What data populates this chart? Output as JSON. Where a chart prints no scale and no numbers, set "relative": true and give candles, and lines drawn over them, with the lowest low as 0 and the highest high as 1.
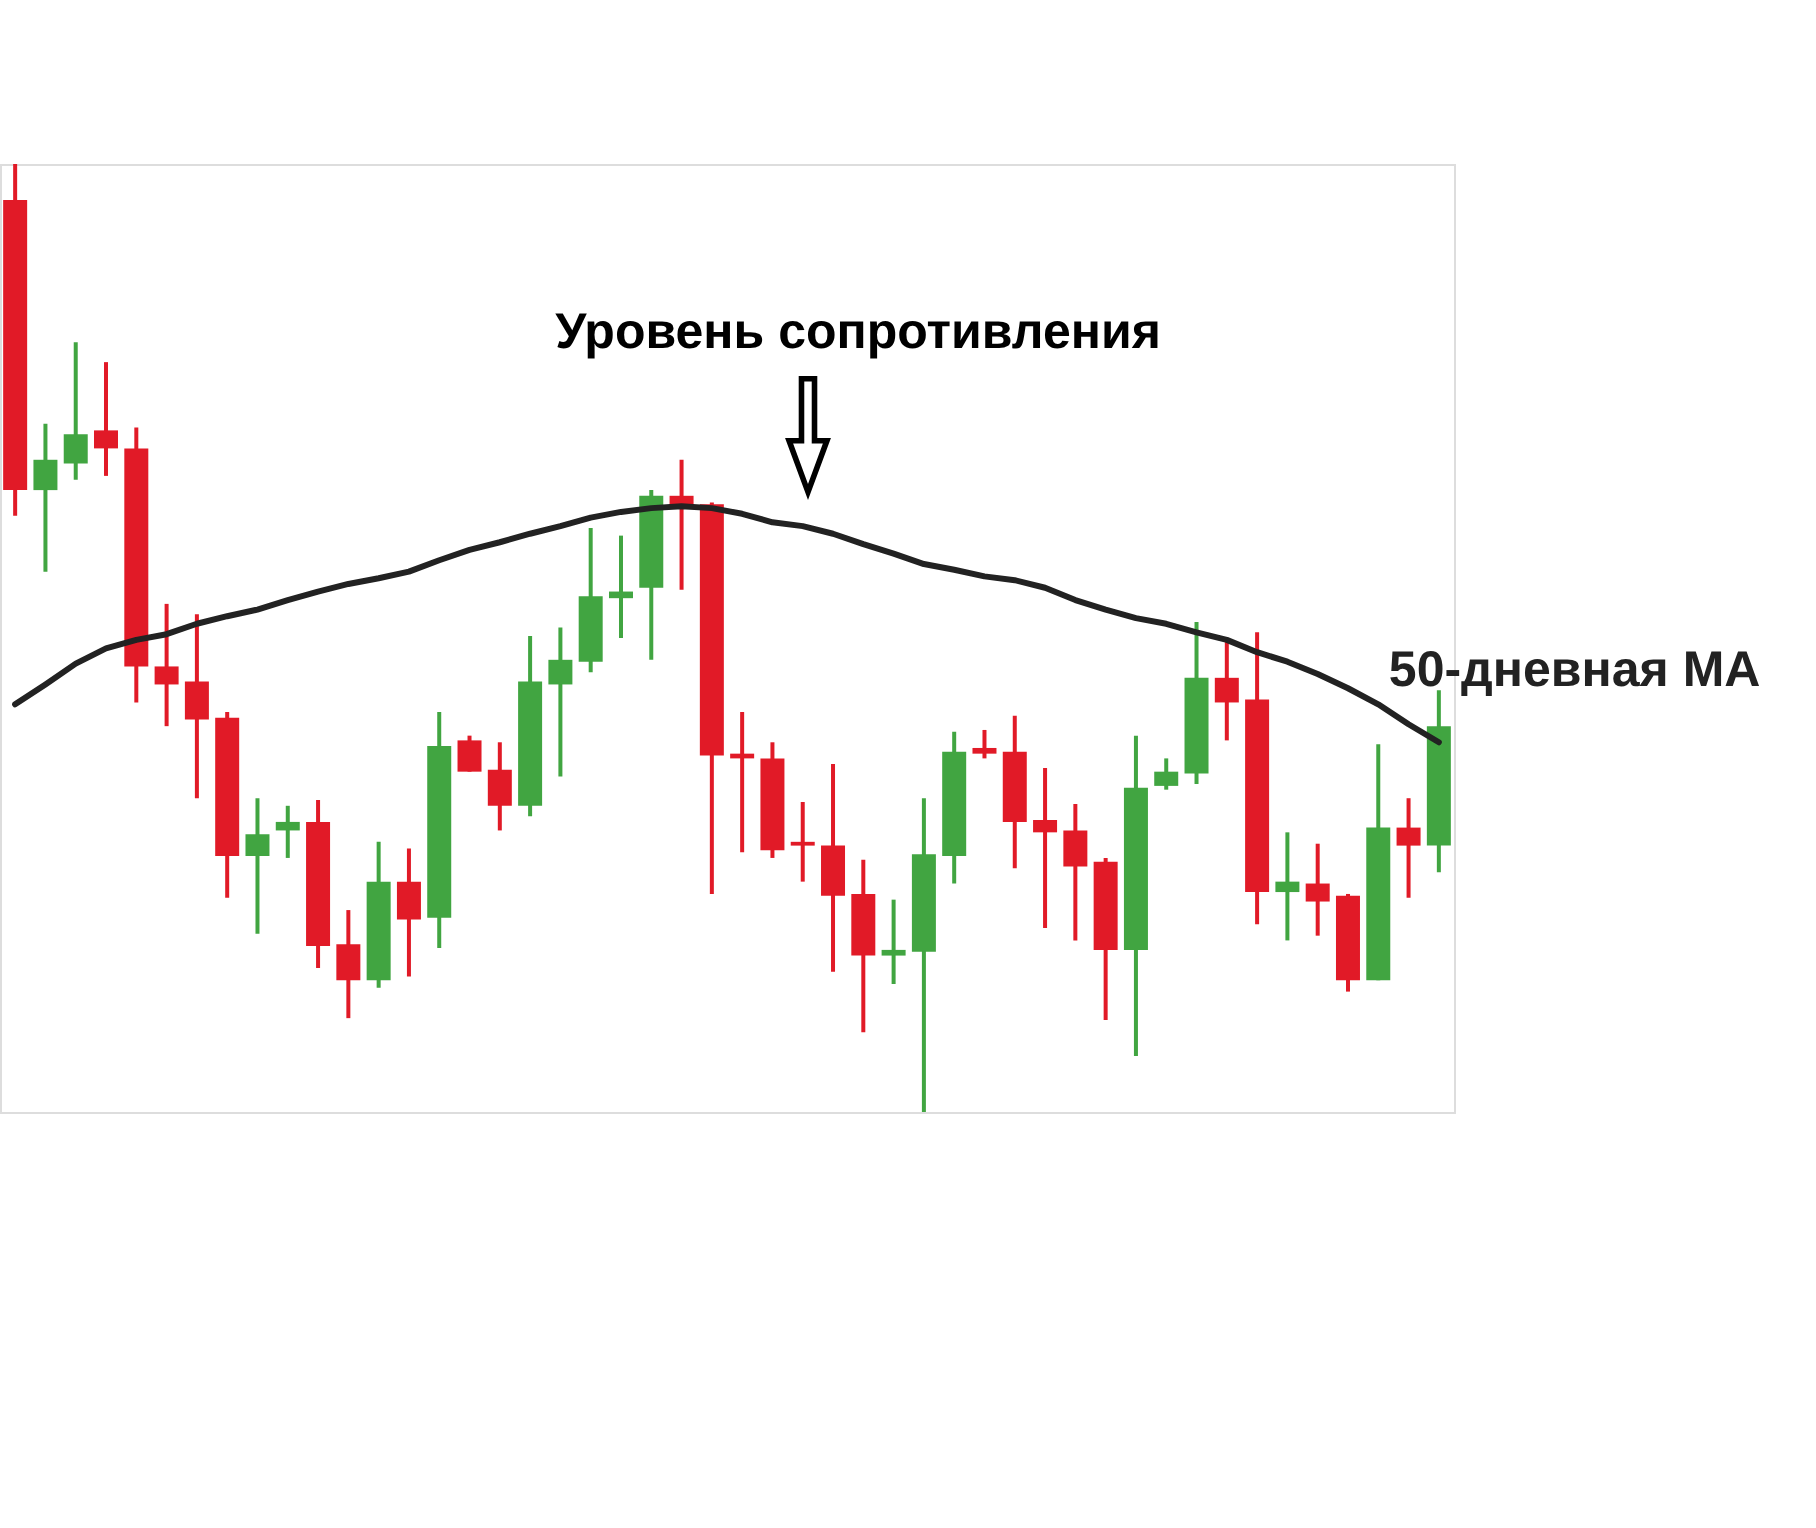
{
  "chart_data": {
    "type": "candlestick",
    "relative": true,
    "tick_labels": false,
    "categories": [
      null,
      null,
      null,
      null,
      null,
      null,
      null,
      null,
      null,
      null,
      null,
      null,
      null,
      null,
      null,
      null,
      null,
      null,
      null,
      null,
      null,
      null,
      null,
      null,
      null,
      null,
      null,
      null,
      null,
      null,
      null,
      null,
      null,
      null,
      null,
      null,
      null,
      null,
      null,
      null,
      null,
      null,
      null,
      null,
      null,
      null,
      null,
      null
    ],
    "ohlc": [
      [
        0.962,
        1.0,
        0.629,
        0.656
      ],
      [
        0.656,
        0.726,
        0.57,
        0.688
      ],
      [
        0.684,
        0.812,
        0.667,
        0.715
      ],
      [
        0.719,
        0.791,
        0.671,
        0.7
      ],
      [
        0.7,
        0.722,
        0.432,
        0.47
      ],
      [
        0.47,
        0.536,
        0.407,
        0.451
      ],
      [
        0.454,
        0.525,
        0.331,
        0.414
      ],
      [
        0.416,
        0.422,
        0.226,
        0.27
      ],
      [
        0.27,
        0.331,
        0.188,
        0.293
      ],
      [
        0.297,
        0.323,
        0.268,
        0.306
      ],
      [
        0.306,
        0.329,
        0.152,
        0.175
      ],
      [
        0.177,
        0.213,
        0.099,
        0.139
      ],
      [
        0.139,
        0.285,
        0.131,
        0.243
      ],
      [
        0.243,
        0.278,
        0.143,
        0.203
      ],
      [
        0.205,
        0.422,
        0.173,
        0.386
      ],
      [
        0.392,
        0.397,
        0.359,
        0.359
      ],
      [
        0.361,
        0.39,
        0.297,
        0.323
      ],
      [
        0.323,
        0.502,
        0.312,
        0.454
      ],
      [
        0.451,
        0.511,
        0.354,
        0.477
      ],
      [
        0.475,
        0.616,
        0.464,
        0.544
      ],
      [
        0.542,
        0.608,
        0.5,
        0.549
      ],
      [
        0.553,
        0.656,
        0.477,
        0.65
      ],
      [
        0.65,
        0.688,
        0.551,
        0.639
      ],
      [
        0.641,
        0.643,
        0.23,
        0.376
      ],
      [
        0.378,
        0.422,
        0.274,
        0.373
      ],
      [
        0.373,
        0.39,
        0.268,
        0.276
      ],
      [
        0.285,
        0.327,
        0.243,
        0.281
      ],
      [
        0.281,
        0.367,
        0.148,
        0.228
      ],
      [
        0.23,
        0.266,
        0.084,
        0.165
      ],
      [
        0.165,
        0.224,
        0.135,
        0.171
      ],
      [
        0.169,
        0.331,
        0.0,
        0.272
      ],
      [
        0.27,
        0.401,
        0.241,
        0.38
      ],
      [
        0.384,
        0.403,
        0.373,
        0.378
      ],
      [
        0.38,
        0.418,
        0.257,
        0.306
      ],
      [
        0.308,
        0.363,
        0.194,
        0.295
      ],
      [
        0.297,
        0.325,
        0.181,
        0.259
      ],
      [
        0.264,
        0.268,
        0.097,
        0.171
      ],
      [
        0.171,
        0.397,
        0.059,
        0.342
      ],
      [
        0.344,
        0.373,
        0.34,
        0.359
      ],
      [
        0.357,
        0.517,
        0.346,
        0.458
      ],
      [
        0.458,
        0.498,
        0.392,
        0.432
      ],
      [
        0.435,
        0.506,
        0.198,
        0.232
      ],
      [
        0.232,
        0.295,
        0.181,
        0.243
      ],
      [
        0.241,
        0.283,
        0.186,
        0.222
      ],
      [
        0.228,
        0.23,
        0.127,
        0.139
      ],
      [
        0.139,
        0.388,
        0.139,
        0.3
      ],
      [
        0.3,
        0.331,
        0.226,
        0.281
      ],
      [
        0.281,
        0.445,
        0.253,
        0.407
      ]
    ],
    "colors": [
      "#e11a27",
      "#41a541",
      "#41a541",
      "#e11a27",
      "#e11a27",
      "#e11a27",
      "#e11a27",
      "#e11a27",
      "#41a541",
      "#41a541",
      "#e11a27",
      "#e11a27",
      "#41a541",
      "#e11a27",
      "#41a541",
      "#e11a27",
      "#e11a27",
      "#41a541",
      "#41a541",
      "#41a541",
      "#41a541",
      "#41a541",
      "#e11a27",
      "#e11a27",
      "#e11a27",
      "#e11a27",
      "#e11a27",
      "#e11a27",
      "#e11a27",
      "#41a541",
      "#41a541",
      "#41a541",
      "#e11a27",
      "#e11a27",
      "#e11a27",
      "#e11a27",
      "#e11a27",
      "#41a541",
      "#41a541",
      "#41a541",
      "#e11a27",
      "#e11a27",
      "#41a541",
      "#e11a27",
      "#e11a27",
      "#41a541",
      "#e11a27",
      "#41a541"
    ],
    "series": [
      {
        "name": "50-дневная MA",
        "type": "line",
        "color": "#222222",
        "values": [
          0.43,
          0.451,
          0.473,
          0.489,
          0.498,
          0.504,
          0.515,
          0.523,
          0.53,
          0.54,
          0.549,
          0.557,
          0.563,
          0.57,
          0.582,
          0.593,
          0.601,
          0.61,
          0.618,
          0.627,
          0.633,
          0.637,
          0.639,
          0.637,
          0.631,
          0.622,
          0.618,
          0.61,
          0.599,
          0.589,
          0.578,
          0.572,
          0.565,
          0.561,
          0.553,
          0.54,
          0.53,
          0.521,
          0.515,
          0.506,
          0.498,
          0.485,
          0.475,
          0.462,
          0.447,
          0.43,
          0.409,
          0.39
        ]
      }
    ],
    "annotations": [
      "Уровень сопротивления"
    ]
  }
}
